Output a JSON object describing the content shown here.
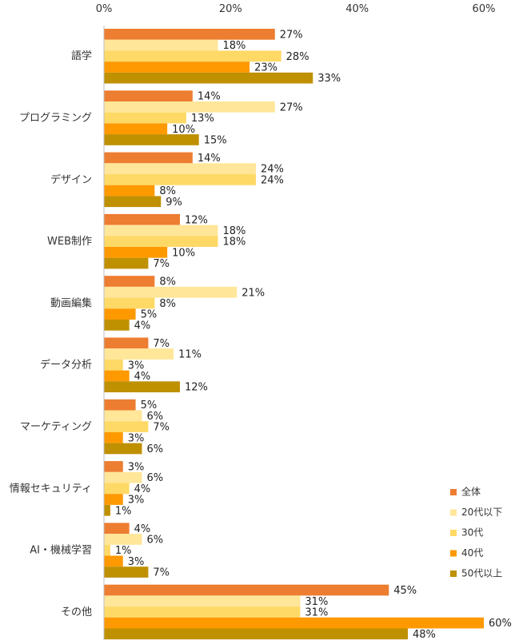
{
  "chart_data": {
    "type": "bar",
    "orientation": "horizontal",
    "xlim": [
      0,
      60
    ],
    "x_ticks": [
      "0%",
      "20%",
      "40%",
      "60%"
    ],
    "x_tick_values": [
      0,
      20,
      40,
      60
    ],
    "grid": false,
    "legend_position": "bottom-right",
    "categories": [
      "語学",
      "プログラミング",
      "デザイン",
      "WEB制作",
      "動画編集",
      "データ分析",
      "マーケティング",
      "情報セキュリティ",
      "AI・機械学習",
      "その他"
    ],
    "series": [
      {
        "name": "全体",
        "color": "#ED7D31",
        "values": [
          27,
          14,
          14,
          12,
          8,
          7,
          5,
          3,
          4,
          45
        ],
        "labels": [
          "27%",
          "14%",
          "14%",
          "12%",
          "8%",
          "7%",
          "5%",
          "3%",
          "4%",
          "45%"
        ]
      },
      {
        "name": "20代以下",
        "color": "#FFE699",
        "values": [
          18,
          27,
          24,
          18,
          21,
          11,
          6,
          6,
          6,
          31
        ],
        "labels": [
          "18%",
          "27%",
          "24%",
          "18%",
          "21%",
          "11%",
          "6%",
          "6%",
          "6%",
          "31%"
        ]
      },
      {
        "name": "30代",
        "color": "#FFD966",
        "values": [
          28,
          13,
          24,
          18,
          8,
          3,
          7,
          4,
          1,
          31
        ],
        "labels": [
          "28%",
          "13%",
          "24%",
          "18%",
          "8%",
          "3%",
          "7%",
          "4%",
          "1%",
          "31%"
        ]
      },
      {
        "name": "40代",
        "color": "#FF9900",
        "values": [
          23,
          10,
          8,
          10,
          5,
          4,
          3,
          3,
          3,
          60
        ],
        "labels": [
          "23%",
          "10%",
          "8%",
          "10%",
          "5%",
          "4%",
          "3%",
          "3%",
          "3%",
          "60%"
        ]
      },
      {
        "name": "50代以上",
        "color": "#BF9000",
        "values": [
          33,
          15,
          9,
          7,
          4,
          12,
          6,
          1,
          7,
          48
        ],
        "labels": [
          "33%",
          "15%",
          "9%",
          "7%",
          "4%",
          "12%",
          "6%",
          "1%",
          "7%",
          "48%"
        ]
      }
    ]
  }
}
